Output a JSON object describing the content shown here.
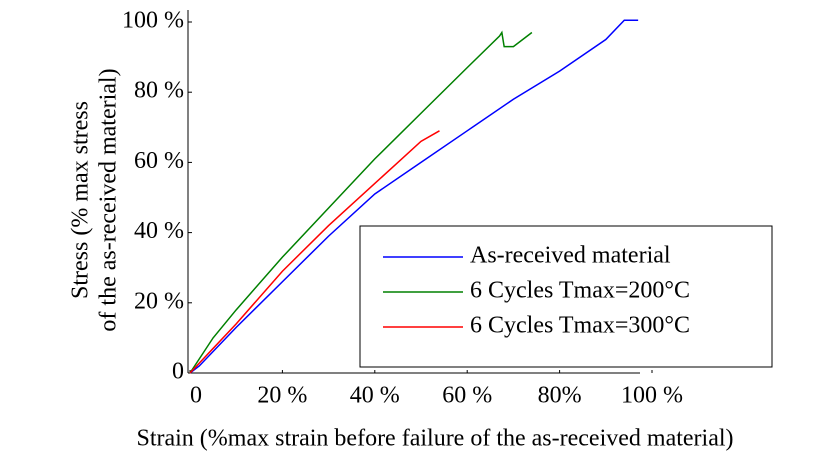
{
  "chart_data": {
    "type": "line",
    "x_label": "Strain (%max  strain before failure of the as-received material)",
    "y_label": [
      "Stress (% max stress",
      "of the as-received  material)"
    ],
    "xlim": [
      0,
      100
    ],
    "ylim": [
      0,
      100
    ],
    "xticks": [
      0,
      {
        "value": 20,
        "label": "20 %"
      },
      {
        "value": 40,
        "label": "40 %"
      },
      {
        "value": 60,
        "label": "60 %"
      },
      {
        "value": 80,
        "label": "80%"
      },
      {
        "value": 100,
        "label": "100 %"
      }
    ],
    "yticks": [
      0,
      {
        "value": 20,
        "label": "20 %"
      },
      {
        "value": 40,
        "label": "40 %"
      },
      {
        "value": 60,
        "label": "60 %"
      },
      {
        "value": 80,
        "label": "80 %"
      },
      {
        "value": 100,
        "label": "100 %"
      }
    ],
    "legend": "lower right",
    "series": [
      {
        "name": "As-received material",
        "color": "#0000ff",
        "x": [
          0,
          2,
          10,
          20,
          30,
          40,
          50,
          60,
          70,
          80,
          90,
          94,
          97
        ],
        "values": [
          0,
          2,
          13,
          26,
          39,
          51,
          60,
          69,
          78,
          86,
          95,
          100.5,
          100.5
        ]
      },
      {
        "name": "6 Cycles Tmax=200°C",
        "color": "#008000",
        "x": [
          0,
          5,
          10,
          20,
          30,
          40,
          50,
          60,
          67,
          67.5,
          68,
          70,
          74
        ],
        "values": [
          0,
          10,
          18,
          33,
          47,
          61,
          74,
          87,
          96,
          97,
          93,
          93,
          97
        ]
      },
      {
        "name": "6 Cycles Tmax=300°C",
        "color": "#ff0000",
        "x": [
          0,
          5,
          10,
          20,
          30,
          40,
          45,
          50,
          54
        ],
        "values": [
          0,
          7,
          14,
          29,
          42,
          54,
          60,
          66,
          69
        ]
      }
    ]
  }
}
